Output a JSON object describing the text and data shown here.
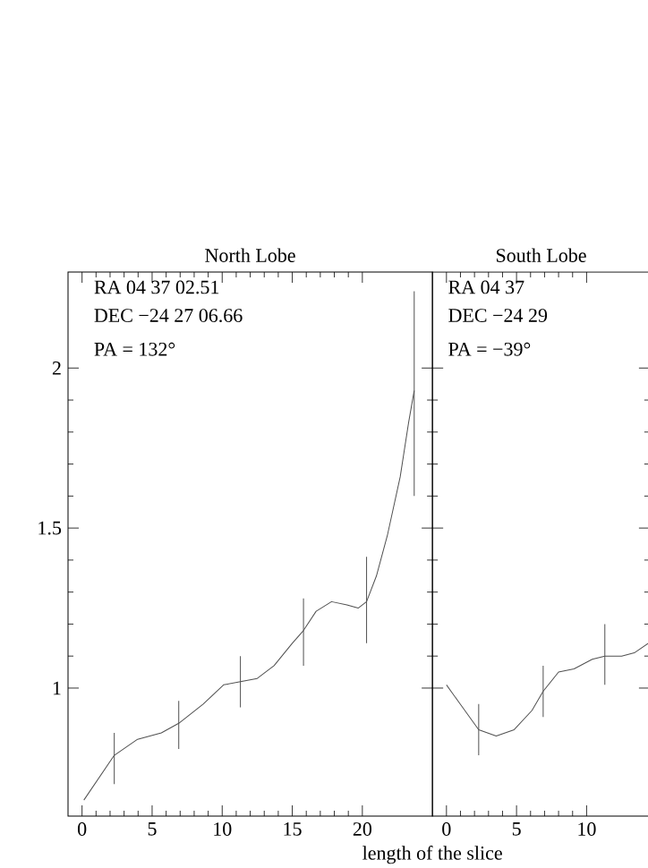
{
  "chart_data": [
    {
      "type": "line",
      "title": "North Lobe",
      "xlabel": "length of the slice",
      "xlim": [
        -1,
        25
      ],
      "xticks": [
        0,
        5,
        10,
        15,
        20
      ],
      "ylim": [
        0.6,
        2.3
      ],
      "yticks": [
        1,
        1.5,
        2
      ],
      "grid": false,
      "annotations": [
        "RA      04 37 02.51",
        "DEC   −24 27 06.66",
        "PA = 132°"
      ],
      "series": [
        {
          "color": "#505050",
          "x": [
            0.13,
            2.3,
            3.96,
            5.66,
            6.9,
            8.64,
            10.1,
            11.3,
            12.5,
            13.7,
            15.0,
            15.8,
            16.7,
            17.8,
            18.9,
            19.7,
            20.3,
            21.0,
            21.8,
            22.7,
            23.3,
            23.7
          ],
          "values": [
            0.65,
            0.79,
            0.84,
            0.86,
            0.89,
            0.95,
            1.01,
            1.02,
            1.03,
            1.07,
            1.14,
            1.18,
            1.24,
            1.27,
            1.26,
            1.25,
            1.27,
            1.35,
            1.48,
            1.66,
            1.83,
            1.93
          ],
          "errors": [
            null,
            [
              0.7,
              0.86
            ],
            null,
            null,
            [
              0.81,
              0.96
            ],
            null,
            null,
            [
              0.94,
              1.1
            ],
            null,
            null,
            null,
            [
              1.07,
              1.28
            ],
            null,
            null,
            null,
            null,
            [
              1.14,
              1.41
            ],
            null,
            null,
            null,
            null,
            [
              1.6,
              2.24
            ]
          ]
        }
      ]
    },
    {
      "type": "line",
      "title": "South Lobe",
      "xlim": [
        -1,
        14.5
      ],
      "xticks": [
        0,
        5,
        10
      ],
      "ylim": [
        0.6,
        2.3
      ],
      "yticks": [
        1,
        1.5,
        2
      ],
      "tick_labels": "x",
      "grid": false,
      "annotations": [
        "RA      04 37",
        "DEC   −24 29",
        "PA = −39°"
      ],
      "series": [
        {
          "color": "#505050",
          "x": [
            0,
            0.98,
            2.3,
            3.55,
            4.83,
            6.1,
            6.9,
            8.0,
            9.1,
            10.4,
            11.3,
            12.5,
            13.4,
            14.4
          ],
          "values": [
            1.01,
            0.95,
            0.87,
            0.85,
            0.87,
            0.93,
            0.99,
            1.05,
            1.06,
            1.09,
            1.1,
            1.1,
            1.11,
            1.14
          ],
          "errors": [
            null,
            null,
            [
              0.79,
              0.95
            ],
            null,
            null,
            null,
            [
              0.91,
              1.07
            ],
            null,
            null,
            null,
            [
              1.01,
              1.2
            ],
            null,
            null,
            null
          ]
        }
      ]
    }
  ]
}
